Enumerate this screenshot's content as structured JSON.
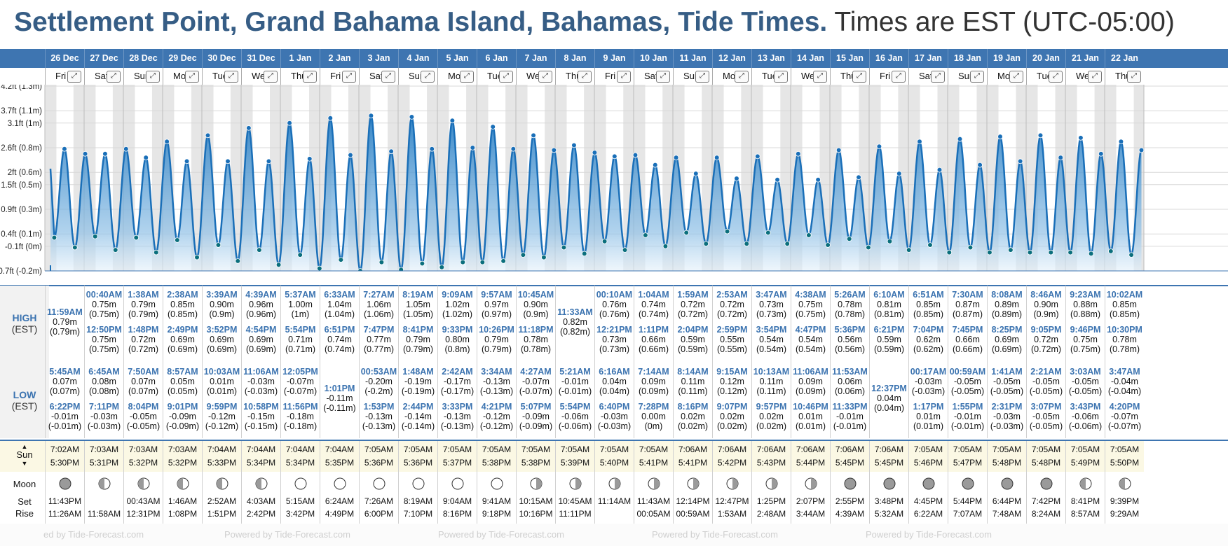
{
  "title": {
    "main": "Settlement Point, Grand Bahama Island, Bahamas, Tide Times.",
    "sub": "Times are EST (UTC-05:00)"
  },
  "colors": {
    "header_blue": "#3e75b1",
    "tide_fill": "#3b8fd1",
    "tide_line": "#1a6fb8",
    "night_band": "#e6e6e6"
  },
  "labels": {
    "high": "HIGH",
    "high_tz": "(EST)",
    "low": "LOW",
    "low_tz": "(EST)",
    "sun": "Sun",
    "moon": "Moon",
    "set": "Set",
    "rise": "Rise"
  },
  "footer": {
    "text": "Powered by Tide-Forecast.com",
    "first_text": "ed by Tide-Forecast.com"
  },
  "chart_data": {
    "type": "area",
    "title": "",
    "xlabel": "",
    "ylabel": "",
    "y_ticks": [
      "4.2ft (1.3m)",
      "3.7ft (1.1m)",
      "3.1ft (1m)",
      "2.6ft (0.8m)",
      "2ft (0.6m)",
      "1.5ft (0.5m)",
      "0.9ft (0.3m)",
      "0.4ft (0.1m)",
      "-0.1ft (0m)",
      "-0.7ft (-0.2m)"
    ],
    "y_tick_values": [
      1.3,
      1.1,
      1.0,
      0.8,
      0.6,
      0.5,
      0.3,
      0.1,
      0.0,
      -0.2
    ],
    "ylim_m": [
      -0.2,
      1.3
    ],
    "grid": true
  },
  "days": [
    {
      "date": "26 Dec",
      "wd": "Fri",
      "highs": [
        {
          "t": "11:59AM",
          "ft": "0.79m",
          "m": "(0.79m)"
        }
      ],
      "lows": [
        {
          "t": "5:45AM",
          "ft": "0.07m",
          "m": "(0.07m)"
        },
        {
          "t": "6:22PM",
          "ft": "-0.01m",
          "m": "(-0.01m)"
        }
      ],
      "sunrise": "7:02AM",
      "sunset": "5:30PM",
      "moon": "new",
      "moonset": "11:43PM",
      "moonrise": "11:26AM"
    },
    {
      "date": "27 Dec",
      "wd": "Sat",
      "highs": [
        {
          "t": "00:40AM",
          "ft": "0.75m",
          "m": "(0.75m)"
        },
        {
          "t": "12:50PM",
          "ft": "0.75m",
          "m": "(0.75m)"
        }
      ],
      "lows": [
        {
          "t": "6:45AM",
          "ft": "0.08m",
          "m": "(0.08m)"
        },
        {
          "t": "7:11PM",
          "ft": "-0.03m",
          "m": "(-0.03m)"
        }
      ],
      "sunrise": "7:03AM",
      "sunset": "5:31PM",
      "moon": "wax",
      "moonset": "",
      "moonrise": "11:58AM"
    },
    {
      "date": "28 Dec",
      "wd": "Sun",
      "highs": [
        {
          "t": "1:38AM",
          "ft": "0.79m",
          "m": "(0.79m)"
        },
        {
          "t": "1:48PM",
          "ft": "0.72m",
          "m": "(0.72m)"
        }
      ],
      "lows": [
        {
          "t": "7:50AM",
          "ft": "0.07m",
          "m": "(0.07m)"
        },
        {
          "t": "8:04PM",
          "ft": "-0.05m",
          "m": "(-0.05m)"
        }
      ],
      "sunrise": "7:03AM",
      "sunset": "5:32PM",
      "moon": "wax",
      "moonset": "00:43AM",
      "moonrise": "12:31PM"
    },
    {
      "date": "29 Dec",
      "wd": "Mon",
      "highs": [
        {
          "t": "2:38AM",
          "ft": "0.85m",
          "m": "(0.85m)"
        },
        {
          "t": "2:49PM",
          "ft": "0.69m",
          "m": "(0.69m)"
        }
      ],
      "lows": [
        {
          "t": "8:57AM",
          "ft": "0.05m",
          "m": "(0.05m)"
        },
        {
          "t": "9:01PM",
          "ft": "-0.09m",
          "m": "(-0.09m)"
        }
      ],
      "sunrise": "7:03AM",
      "sunset": "5:32PM",
      "moon": "wax",
      "moonset": "1:46AM",
      "moonrise": "1:08PM"
    },
    {
      "date": "30 Dec",
      "wd": "Tue",
      "highs": [
        {
          "t": "3:39AM",
          "ft": "0.90m",
          "m": "(0.9m)"
        },
        {
          "t": "3:52PM",
          "ft": "0.69m",
          "m": "(0.69m)"
        }
      ],
      "lows": [
        {
          "t": "10:03AM",
          "ft": "0.01m",
          "m": "(0.01m)"
        },
        {
          "t": "9:59PM",
          "ft": "-0.12m",
          "m": "(-0.12m)"
        }
      ],
      "sunrise": "7:04AM",
      "sunset": "5:33PM",
      "moon": "wax",
      "moonset": "2:52AM",
      "moonrise": "1:51PM"
    },
    {
      "date": "31 Dec",
      "wd": "Wed",
      "highs": [
        {
          "t": "4:39AM",
          "ft": "0.96m",
          "m": "(0.96m)"
        },
        {
          "t": "4:54PM",
          "ft": "0.69m",
          "m": "(0.69m)"
        }
      ],
      "lows": [
        {
          "t": "11:06AM",
          "ft": "-0.03m",
          "m": "(-0.03m)"
        },
        {
          "t": "10:58PM",
          "ft": "-0.15m",
          "m": "(-0.15m)"
        }
      ],
      "sunrise": "7:04AM",
      "sunset": "5:34PM",
      "moon": "wax",
      "moonset": "4:03AM",
      "moonrise": "2:42PM"
    },
    {
      "date": "1 Jan",
      "wd": "Thu",
      "highs": [
        {
          "t": "5:37AM",
          "ft": "1.00m",
          "m": "(1m)"
        },
        {
          "t": "5:54PM",
          "ft": "0.71m",
          "m": "(0.71m)"
        }
      ],
      "lows": [
        {
          "t": "12:05PM",
          "ft": "-0.07m",
          "m": "(-0.07m)"
        },
        {
          "t": "11:56PM",
          "ft": "-0.18m",
          "m": "(-0.18m)"
        }
      ],
      "sunrise": "7:04AM",
      "sunset": "5:34PM",
      "moon": "full",
      "moonset": "5:15AM",
      "moonrise": "3:42PM"
    },
    {
      "date": "2 Jan",
      "wd": "Fri",
      "highs": [
        {
          "t": "6:33AM",
          "ft": "1.04m",
          "m": "(1.04m)"
        },
        {
          "t": "6:51PM",
          "ft": "0.74m",
          "m": "(0.74m)"
        }
      ],
      "lows": [
        {
          "t": "1:01PM",
          "ft": "-0.11m",
          "m": "(-0.11m)"
        }
      ],
      "sunrise": "7:04AM",
      "sunset": "5:35PM",
      "moon": "full",
      "moonset": "6:24AM",
      "moonrise": "4:49PM"
    },
    {
      "date": "3 Jan",
      "wd": "Sat",
      "highs": [
        {
          "t": "7:27AM",
          "ft": "1.06m",
          "m": "(1.06m)"
        },
        {
          "t": "7:47PM",
          "ft": "0.77m",
          "m": "(0.77m)"
        }
      ],
      "lows": [
        {
          "t": "00:53AM",
          "ft": "-0.20m",
          "m": "(-0.2m)"
        },
        {
          "t": "1:53PM",
          "ft": "-0.13m",
          "m": "(-0.13m)"
        }
      ],
      "sunrise": "7:05AM",
      "sunset": "5:36PM",
      "moon": "full",
      "moonset": "7:26AM",
      "moonrise": "6:00PM"
    },
    {
      "date": "4 Jan",
      "wd": "Sun",
      "highs": [
        {
          "t": "8:19AM",
          "ft": "1.05m",
          "m": "(1.05m)"
        },
        {
          "t": "8:41PM",
          "ft": "0.79m",
          "m": "(0.79m)"
        }
      ],
      "lows": [
        {
          "t": "1:48AM",
          "ft": "-0.19m",
          "m": "(-0.19m)"
        },
        {
          "t": "2:44PM",
          "ft": "-0.14m",
          "m": "(-0.14m)"
        }
      ],
      "sunrise": "7:05AM",
      "sunset": "5:36PM",
      "moon": "full",
      "moonset": "8:19AM",
      "moonrise": "7:10PM"
    },
    {
      "date": "5 Jan",
      "wd": "Mon",
      "highs": [
        {
          "t": "9:09AM",
          "ft": "1.02m",
          "m": "(1.02m)"
        },
        {
          "t": "9:33PM",
          "ft": "0.80m",
          "m": "(0.8m)"
        }
      ],
      "lows": [
        {
          "t": "2:42AM",
          "ft": "-0.17m",
          "m": "(-0.17m)"
        },
        {
          "t": "3:33PM",
          "ft": "-0.13m",
          "m": "(-0.13m)"
        }
      ],
      "sunrise": "7:05AM",
      "sunset": "5:37PM",
      "moon": "full",
      "moonset": "9:04AM",
      "moonrise": "8:16PM"
    },
    {
      "date": "6 Jan",
      "wd": "Tue",
      "highs": [
        {
          "t": "9:57AM",
          "ft": "0.97m",
          "m": "(0.97m)"
        },
        {
          "t": "10:26PM",
          "ft": "0.79m",
          "m": "(0.79m)"
        }
      ],
      "lows": [
        {
          "t": "3:34AM",
          "ft": "-0.13m",
          "m": "(-0.13m)"
        },
        {
          "t": "4:21PM",
          "ft": "-0.12m",
          "m": "(-0.12m)"
        }
      ],
      "sunrise": "7:05AM",
      "sunset": "5:38PM",
      "moon": "full",
      "moonset": "9:41AM",
      "moonrise": "9:18PM"
    },
    {
      "date": "7 Jan",
      "wd": "Wed",
      "highs": [
        {
          "t": "10:45AM",
          "ft": "0.90m",
          "m": "(0.9m)"
        },
        {
          "t": "11:18PM",
          "ft": "0.78m",
          "m": "(0.78m)"
        }
      ],
      "lows": [
        {
          "t": "4:27AM",
          "ft": "-0.07m",
          "m": "(-0.07m)"
        },
        {
          "t": "5:07PM",
          "ft": "-0.09m",
          "m": "(-0.09m)"
        }
      ],
      "sunrise": "7:05AM",
      "sunset": "5:38PM",
      "moon": "wan",
      "moonset": "10:15AM",
      "moonrise": "10:16PM"
    },
    {
      "date": "8 Jan",
      "wd": "Thu",
      "highs": [
        {
          "t": "11:33AM",
          "ft": "0.82m",
          "m": "(0.82m)"
        }
      ],
      "lows": [
        {
          "t": "5:21AM",
          "ft": "-0.01m",
          "m": "(-0.01m)"
        },
        {
          "t": "5:54PM",
          "ft": "-0.06m",
          "m": "(-0.06m)"
        }
      ],
      "sunrise": "7:05AM",
      "sunset": "5:39PM",
      "moon": "wan",
      "moonset": "10:45AM",
      "moonrise": "11:11PM"
    },
    {
      "date": "9 Jan",
      "wd": "Fri",
      "highs": [
        {
          "t": "00:10AM",
          "ft": "0.76m",
          "m": "(0.76m)"
        },
        {
          "t": "12:21PM",
          "ft": "0.73m",
          "m": "(0.73m)"
        }
      ],
      "lows": [
        {
          "t": "6:16AM",
          "ft": "0.04m",
          "m": "(0.04m)"
        },
        {
          "t": "6:40PM",
          "ft": "-0.03m",
          "m": "(-0.03m)"
        }
      ],
      "sunrise": "7:05AM",
      "sunset": "5:40PM",
      "moon": "wan",
      "moonset": "11:14AM",
      "moonrise": ""
    },
    {
      "date": "10 Jan",
      "wd": "Sat",
      "highs": [
        {
          "t": "1:04AM",
          "ft": "0.74m",
          "m": "(0.74m)"
        },
        {
          "t": "1:11PM",
          "ft": "0.66m",
          "m": "(0.66m)"
        }
      ],
      "lows": [
        {
          "t": "7:14AM",
          "ft": "0.09m",
          "m": "(0.09m)"
        },
        {
          "t": "7:28PM",
          "ft": "0.00m",
          "m": "(0m)"
        }
      ],
      "sunrise": "7:05AM",
      "sunset": "5:41PM",
      "moon": "wan",
      "moonset": "11:43AM",
      "moonrise": "00:05AM"
    },
    {
      "date": "11 Jan",
      "wd": "Sun",
      "highs": [
        {
          "t": "1:59AM",
          "ft": "0.72m",
          "m": "(0.72m)"
        },
        {
          "t": "2:04PM",
          "ft": "0.59m",
          "m": "(0.59m)"
        }
      ],
      "lows": [
        {
          "t": "8:14AM",
          "ft": "0.11m",
          "m": "(0.11m)"
        },
        {
          "t": "8:16PM",
          "ft": "0.02m",
          "m": "(0.02m)"
        }
      ],
      "sunrise": "7:06AM",
      "sunset": "5:41PM",
      "moon": "wan",
      "moonset": "12:14PM",
      "moonrise": "00:59AM"
    },
    {
      "date": "12 Jan",
      "wd": "Mon",
      "highs": [
        {
          "t": "2:53AM",
          "ft": "0.72m",
          "m": "(0.72m)"
        },
        {
          "t": "2:59PM",
          "ft": "0.55m",
          "m": "(0.55m)"
        }
      ],
      "lows": [
        {
          "t": "9:15AM",
          "ft": "0.12m",
          "m": "(0.12m)"
        },
        {
          "t": "9:07PM",
          "ft": "0.02m",
          "m": "(0.02m)"
        }
      ],
      "sunrise": "7:06AM",
      "sunset": "5:42PM",
      "moon": "wan",
      "moonset": "12:47PM",
      "moonrise": "1:53AM"
    },
    {
      "date": "13 Jan",
      "wd": "Tue",
      "highs": [
        {
          "t": "3:47AM",
          "ft": "0.73m",
          "m": "(0.73m)"
        },
        {
          "t": "3:54PM",
          "ft": "0.54m",
          "m": "(0.54m)"
        }
      ],
      "lows": [
        {
          "t": "10:13AM",
          "ft": "0.11m",
          "m": "(0.11m)"
        },
        {
          "t": "9:57PM",
          "ft": "0.02m",
          "m": "(0.02m)"
        }
      ],
      "sunrise": "7:06AM",
      "sunset": "5:43PM",
      "moon": "wan",
      "moonset": "1:25PM",
      "moonrise": "2:48AM"
    },
    {
      "date": "14 Jan",
      "wd": "Wed",
      "highs": [
        {
          "t": "4:38AM",
          "ft": "0.75m",
          "m": "(0.75m)"
        },
        {
          "t": "4:47PM",
          "ft": "0.54m",
          "m": "(0.54m)"
        }
      ],
      "lows": [
        {
          "t": "11:06AM",
          "ft": "0.09m",
          "m": "(0.09m)"
        },
        {
          "t": "10:46PM",
          "ft": "0.01m",
          "m": "(0.01m)"
        }
      ],
      "sunrise": "7:06AM",
      "sunset": "5:44PM",
      "moon": "wan",
      "moonset": "2:07PM",
      "moonrise": "3:44AM"
    },
    {
      "date": "15 Jan",
      "wd": "Thu",
      "highs": [
        {
          "t": "5:26AM",
          "ft": "0.78m",
          "m": "(0.78m)"
        },
        {
          "t": "5:36PM",
          "ft": "0.56m",
          "m": "(0.56m)"
        }
      ],
      "lows": [
        {
          "t": "11:53AM",
          "ft": "0.06m",
          "m": "(0.06m)"
        },
        {
          "t": "11:33PM",
          "ft": "-0.01m",
          "m": "(-0.01m)"
        }
      ],
      "sunrise": "7:06AM",
      "sunset": "5:45PM",
      "moon": "new",
      "moonset": "2:55PM",
      "moonrise": "4:39AM"
    },
    {
      "date": "16 Jan",
      "wd": "Fri",
      "highs": [
        {
          "t": "6:10AM",
          "ft": "0.81m",
          "m": "(0.81m)"
        },
        {
          "t": "6:21PM",
          "ft": "0.59m",
          "m": "(0.59m)"
        }
      ],
      "lows": [
        {
          "t": "12:37PM",
          "ft": "0.04m",
          "m": "(0.04m)"
        }
      ],
      "sunrise": "7:06AM",
      "sunset": "5:45PM",
      "moon": "new",
      "moonset": "3:48PM",
      "moonrise": "5:32AM"
    },
    {
      "date": "17 Jan",
      "wd": "Sat",
      "highs": [
        {
          "t": "6:51AM",
          "ft": "0.85m",
          "m": "(0.85m)"
        },
        {
          "t": "7:04PM",
          "ft": "0.62m",
          "m": "(0.62m)"
        }
      ],
      "lows": [
        {
          "t": "00:17AM",
          "ft": "-0.03m",
          "m": "(-0.03m)"
        },
        {
          "t": "1:17PM",
          "ft": "0.01m",
          "m": "(0.01m)"
        }
      ],
      "sunrise": "7:05AM",
      "sunset": "5:46PM",
      "moon": "new",
      "moonset": "4:45PM",
      "moonrise": "6:22AM"
    },
    {
      "date": "18 Jan",
      "wd": "Sun",
      "highs": [
        {
          "t": "7:30AM",
          "ft": "0.87m",
          "m": "(0.87m)"
        },
        {
          "t": "7:45PM",
          "ft": "0.66m",
          "m": "(0.66m)"
        }
      ],
      "lows": [
        {
          "t": "00:59AM",
          "ft": "-0.05m",
          "m": "(-0.05m)"
        },
        {
          "t": "1:55PM",
          "ft": "-0.01m",
          "m": "(-0.01m)"
        }
      ],
      "sunrise": "7:05AM",
      "sunset": "5:47PM",
      "moon": "new",
      "moonset": "5:44PM",
      "moonrise": "7:07AM"
    },
    {
      "date": "19 Jan",
      "wd": "Mon",
      "highs": [
        {
          "t": "8:08AM",
          "ft": "0.89m",
          "m": "(0.89m)"
        },
        {
          "t": "8:25PM",
          "ft": "0.69m",
          "m": "(0.69m)"
        }
      ],
      "lows": [
        {
          "t": "1:41AM",
          "ft": "-0.05m",
          "m": "(-0.05m)"
        },
        {
          "t": "2:31PM",
          "ft": "-0.03m",
          "m": "(-0.03m)"
        }
      ],
      "sunrise": "7:05AM",
      "sunset": "5:48PM",
      "moon": "new",
      "moonset": "6:44PM",
      "moonrise": "7:48AM"
    },
    {
      "date": "20 Jan",
      "wd": "Tue",
      "highs": [
        {
          "t": "8:46AM",
          "ft": "0.90m",
          "m": "(0.9m)"
        },
        {
          "t": "9:05PM",
          "ft": "0.72m",
          "m": "(0.72m)"
        }
      ],
      "lows": [
        {
          "t": "2:21AM",
          "ft": "-0.05m",
          "m": "(-0.05m)"
        },
        {
          "t": "3:07PM",
          "ft": "-0.05m",
          "m": "(-0.05m)"
        }
      ],
      "sunrise": "7:05AM",
      "sunset": "5:48PM",
      "moon": "new",
      "moonset": "7:42PM",
      "moonrise": "8:24AM"
    },
    {
      "date": "21 Jan",
      "wd": "Wed",
      "highs": [
        {
          "t": "9:23AM",
          "ft": "0.88m",
          "m": "(0.88m)"
        },
        {
          "t": "9:46PM",
          "ft": "0.75m",
          "m": "(0.75m)"
        }
      ],
      "lows": [
        {
          "t": "3:03AM",
          "ft": "-0.05m",
          "m": "(-0.05m)"
        },
        {
          "t": "3:43PM",
          "ft": "-0.06m",
          "m": "(-0.06m)"
        }
      ],
      "sunrise": "7:05AM",
      "sunset": "5:49PM",
      "moon": "wax",
      "moonset": "8:41PM",
      "moonrise": "8:57AM"
    },
    {
      "date": "22 Jan",
      "wd": "Thu",
      "highs": [
        {
          "t": "10:02AM",
          "ft": "0.85m",
          "m": "(0.85m)"
        },
        {
          "t": "10:30PM",
          "ft": "0.78m",
          "m": "(0.78m)"
        }
      ],
      "lows": [
        {
          "t": "3:47AM",
          "ft": "-0.04m",
          "m": "(-0.04m)"
        },
        {
          "t": "4:20PM",
          "ft": "-0.07m",
          "m": "(-0.07m)"
        }
      ],
      "sunrise": "7:05AM",
      "sunset": "5:50PM",
      "moon": "wax",
      "moonset": "9:39PM",
      "moonrise": "9:29AM"
    }
  ]
}
